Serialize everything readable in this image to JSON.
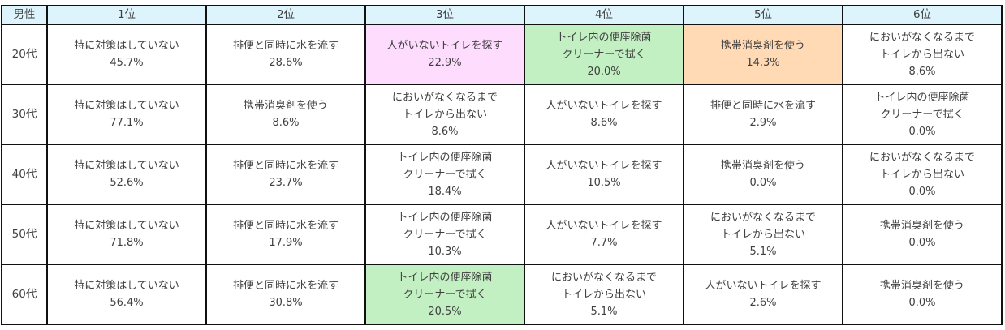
{
  "table": {
    "corner_label": "男性",
    "rank_headers": [
      "1位",
      "2位",
      "3位",
      "4位",
      "5位",
      "6位"
    ],
    "highlight_colors": {
      "header": "#DDF4FC",
      "pink": "#FDDCFD",
      "green": "#C2F0C2",
      "orange": "#FFDAB5"
    },
    "rows": [
      {
        "age": "20代",
        "cells": [
          {
            "lines": [
              "特に対策はしていない"
            ],
            "pct": "45.7%",
            "bg": ""
          },
          {
            "lines": [
              "排便と同時に水を流す"
            ],
            "pct": "28.6%",
            "bg": ""
          },
          {
            "lines": [
              "人がいないトイレを探す"
            ],
            "pct": "22.9%",
            "bg": "pink"
          },
          {
            "lines": [
              "トイレ内の便座除菌",
              "クリーナーで拭く"
            ],
            "pct": "20.0%",
            "bg": "green"
          },
          {
            "lines": [
              "携帯消臭剤を使う"
            ],
            "pct": "14.3%",
            "bg": "orange"
          },
          {
            "lines": [
              "においがなくなるまで",
              "トイレから出ない"
            ],
            "pct": "8.6%",
            "bg": ""
          }
        ]
      },
      {
        "age": "30代",
        "cells": [
          {
            "lines": [
              "特に対策はしていない"
            ],
            "pct": "77.1%",
            "bg": ""
          },
          {
            "lines": [
              "携帯消臭剤を使う"
            ],
            "pct": "8.6%",
            "bg": ""
          },
          {
            "lines": [
              "においがなくなるまで",
              "トイレから出ない"
            ],
            "pct": "8.6%",
            "bg": ""
          },
          {
            "lines": [
              "人がいないトイレを探す"
            ],
            "pct": "8.6%",
            "bg": ""
          },
          {
            "lines": [
              "排便と同時に水を流す"
            ],
            "pct": "2.9%",
            "bg": ""
          },
          {
            "lines": [
              "トイレ内の便座除菌",
              "クリーナーで拭く"
            ],
            "pct": "0.0%",
            "bg": ""
          }
        ]
      },
      {
        "age": "40代",
        "cells": [
          {
            "lines": [
              "特に対策はしていない"
            ],
            "pct": "52.6%",
            "bg": ""
          },
          {
            "lines": [
              "排便と同時に水を流す"
            ],
            "pct": "23.7%",
            "bg": ""
          },
          {
            "lines": [
              "トイレ内の便座除菌",
              "クリーナーで拭く"
            ],
            "pct": "18.4%",
            "bg": ""
          },
          {
            "lines": [
              "人がいないトイレを探す"
            ],
            "pct": "10.5%",
            "bg": ""
          },
          {
            "lines": [
              "携帯消臭剤を使う"
            ],
            "pct": "0.0%",
            "bg": ""
          },
          {
            "lines": [
              "においがなくなるまで",
              "トイレから出ない"
            ],
            "pct": "0.0%",
            "bg": ""
          }
        ]
      },
      {
        "age": "50代",
        "cells": [
          {
            "lines": [
              "特に対策はしていない"
            ],
            "pct": "71.8%",
            "bg": ""
          },
          {
            "lines": [
              "排便と同時に水を流す"
            ],
            "pct": "17.9%",
            "bg": ""
          },
          {
            "lines": [
              "トイレ内の便座除菌",
              "クリーナーで拭く"
            ],
            "pct": "10.3%",
            "bg": ""
          },
          {
            "lines": [
              "人がいないトイレを探す"
            ],
            "pct": "7.7%",
            "bg": ""
          },
          {
            "lines": [
              "においがなくなるまで",
              "トイレから出ない"
            ],
            "pct": "5.1%",
            "bg": ""
          },
          {
            "lines": [
              "携帯消臭剤を使う"
            ],
            "pct": "0.0%",
            "bg": ""
          }
        ]
      },
      {
        "age": "60代",
        "cells": [
          {
            "lines": [
              "特に対策はしていない"
            ],
            "pct": "56.4%",
            "bg": ""
          },
          {
            "lines": [
              "排便と同時に水を流す"
            ],
            "pct": "30.8%",
            "bg": ""
          },
          {
            "lines": [
              "トイレ内の便座除菌",
              "クリーナーで拭く"
            ],
            "pct": "20.5%",
            "bg": "green"
          },
          {
            "lines": [
              "においがなくなるまで",
              "トイレから出ない"
            ],
            "pct": "5.1%",
            "bg": ""
          },
          {
            "lines": [
              "人がいないトイレを探す"
            ],
            "pct": "2.6%",
            "bg": ""
          },
          {
            "lines": [
              "携帯消臭剤を使う"
            ],
            "pct": "0.0%",
            "bg": ""
          }
        ]
      }
    ]
  }
}
